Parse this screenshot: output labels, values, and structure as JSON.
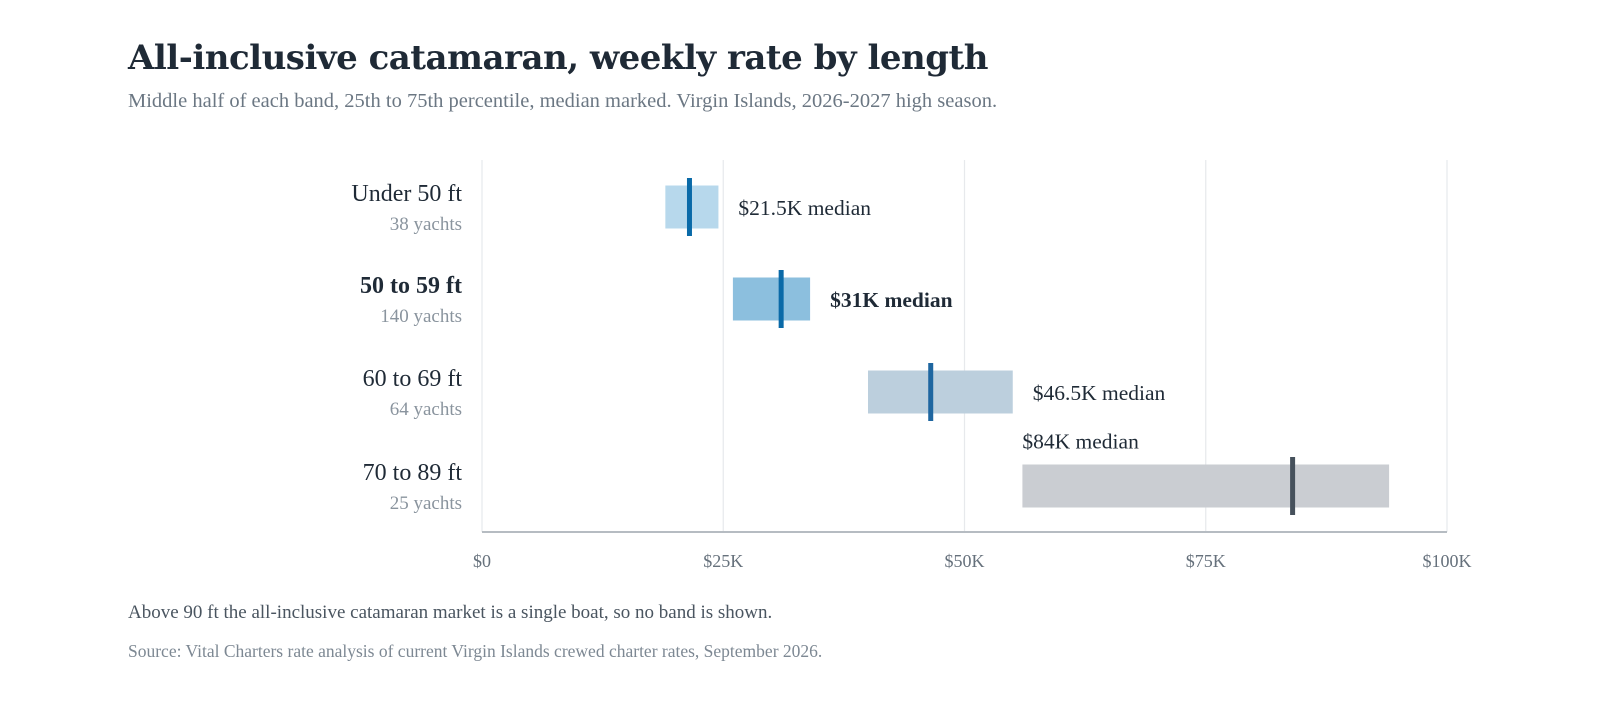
{
  "header": {
    "title": "All-inclusive catamaran, weekly rate by length",
    "subtitle": "Middle half of each band, 25th to 75th percentile, median marked. Virgin Islands, 2026-2027 high season."
  },
  "footer": {
    "note": "Above 90 ft the all-inclusive catamaran market is a single boat, so no band is shown.",
    "source": "Source: Vital Charters rate analysis of current Virgin Islands crewed charter rates, September 2026."
  },
  "chart_data": {
    "type": "range-bar",
    "title": "All-inclusive catamaran, weekly rate by length",
    "subtitle": "Middle half of each band, 25th to 75th percentile, median marked. Virgin Islands, 2026-2027 high season.",
    "xlim": [
      0,
      100000
    ],
    "x_ticks": [
      0,
      25000,
      50000,
      75000,
      100000
    ],
    "x_tick_labels": [
      "$0",
      "$25K",
      "$50K",
      "$75K",
      "$100K"
    ],
    "grid": "vertical",
    "bands": [
      {
        "label": "Under 50 ft",
        "count_label": "38 yachts",
        "p25": 19000,
        "p75": 24500,
        "median": 21500,
        "median_label": "$21.5K median",
        "emphasis": false,
        "label_position": "right",
        "fill_color": "#b7d8ec",
        "median_color": "#0a6aa8"
      },
      {
        "label": "50 to 59 ft",
        "count_label": "140 yachts",
        "p25": 26000,
        "p75": 34000,
        "median": 31000,
        "median_label": "$31K median",
        "emphasis": true,
        "label_position": "right",
        "fill_color": "#8cbfde",
        "median_color": "#0a6aa8"
      },
      {
        "label": "60 to 69 ft",
        "count_label": "64 yachts",
        "p25": 40000,
        "p75": 55000,
        "median": 46500,
        "median_label": "$46.5K median",
        "emphasis": false,
        "label_position": "right",
        "fill_color": "#bccfdd",
        "median_color": "#1e66a0"
      },
      {
        "label": "70 to 89 ft",
        "count_label": "25 yachts",
        "p25": 56000,
        "p75": 94000,
        "median": 84000,
        "median_label": "$84K median",
        "emphasis": false,
        "label_position": "above",
        "fill_color": "#cacdd2",
        "median_color": "#46515c"
      }
    ],
    "colors": {
      "axis": "#b6bcc2",
      "grid": "#e7e9ec"
    }
  }
}
